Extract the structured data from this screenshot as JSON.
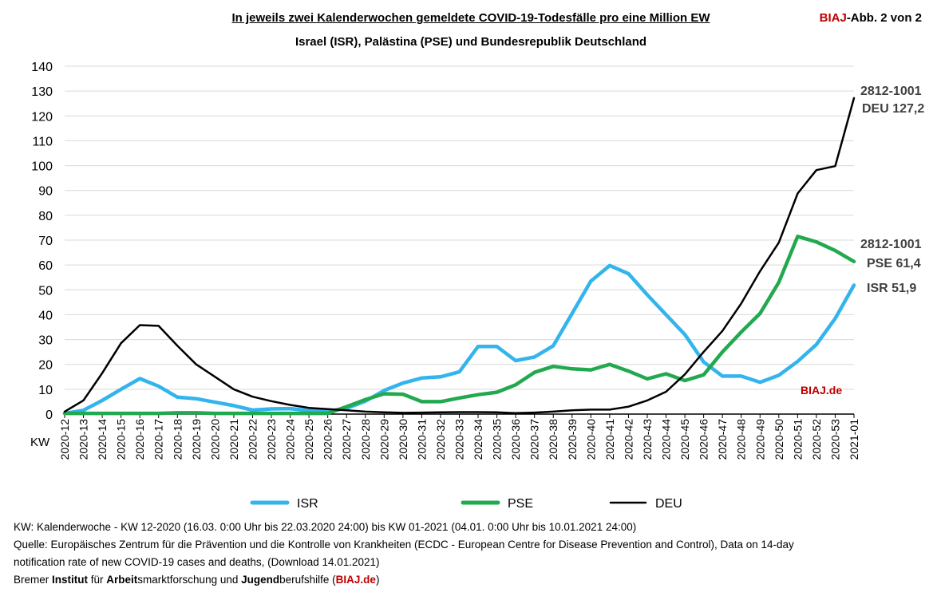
{
  "header": {
    "title": "In jeweils zwei Kalenderwochen gemeldete COVID-19-Todesfälle pro eine Million EW",
    "subtitle": "Israel (ISR), Palästina (PSE) und Bundesrepublik Deutschland",
    "badge_brand": "BIAJ",
    "badge_rest": "-Abb. 2 von 2"
  },
  "chart_data": {
    "type": "line",
    "title": "In jeweils zwei Kalenderwochen gemeldete COVID-19-Todesfälle pro eine Million EW",
    "subtitle": "Israel (ISR), Palästina (PSE) und Bundesrepublik Deutschland",
    "xlabel": "KW",
    "ylabel": "",
    "ylim": [
      0,
      140
    ],
    "yticks": [
      0,
      10,
      20,
      30,
      40,
      50,
      60,
      70,
      80,
      90,
      100,
      110,
      120,
      130,
      140
    ],
    "grid": true,
    "legend_position": "bottom",
    "categories": [
      "2020-12",
      "2020-13",
      "2020-14",
      "2020-15",
      "2020-16",
      "2020-17",
      "2020-18",
      "2020-19",
      "2020-20",
      "2020-21",
      "2020-22",
      "2020-23",
      "2020-24",
      "2020-25",
      "2020-26",
      "2020-27",
      "2020-28",
      "2020-29",
      "2020-30",
      "2020-31",
      "2020-32",
      "2020-33",
      "2020-34",
      "2020-35",
      "2020-36",
      "2020-37",
      "2020-38",
      "2020-39",
      "2020-40",
      "2020-41",
      "2020-42",
      "2020-43",
      "2020-44",
      "2020-45",
      "2020-46",
      "2020-47",
      "2020-48",
      "2020-49",
      "2020-50",
      "2020-51",
      "2020-52",
      "2020-53",
      "2021-01"
    ],
    "series": [
      {
        "name": "ISR",
        "color": "#33b4ec",
        "values": [
          0.3,
          1.5,
          5.5,
          10,
          14.3,
          11.2,
          6.8,
          6.2,
          4.8,
          3.4,
          1.6,
          2.1,
          2.2,
          1.4,
          1.2,
          2.3,
          5.2,
          9.5,
          12.5,
          14.5,
          15,
          17,
          27.2,
          27.2,
          21.5,
          23,
          27.5,
          40.5,
          53.5,
          59.8,
          56.5,
          48,
          40,
          32,
          21,
          15.3,
          15.3,
          12.8,
          15.6,
          21.2,
          28,
          38.5,
          51.9
        ]
      },
      {
        "name": "PSE",
        "color": "#22a94f",
        "values": [
          0.3,
          0.3,
          0.3,
          0.3,
          0.3,
          0.3,
          0.5,
          0.5,
          0.3,
          0.3,
          0.3,
          0.3,
          0.3,
          0.3,
          0.3,
          3,
          5.8,
          8.2,
          8,
          5,
          5,
          6.5,
          7.8,
          8.8,
          11.8,
          16.8,
          19.2,
          18.2,
          17.8,
          20,
          17.3,
          14.2,
          16.2,
          13.5,
          15.8,
          25,
          33,
          40.5,
          53,
          71.5,
          69.3,
          65.8,
          61.4
        ]
      },
      {
        "name": "DEU",
        "color": "#000000",
        "values": [
          1,
          5.5,
          16.5,
          28.5,
          35.8,
          35.5,
          27.5,
          20,
          15,
          10,
          7,
          5.2,
          3.7,
          2.5,
          2,
          1.5,
          1,
          0.7,
          0.5,
          0.6,
          0.7,
          0.8,
          0.8,
          0.7,
          0.4,
          0.6,
          1,
          1.5,
          1.8,
          1.8,
          3,
          5.5,
          9,
          16,
          25,
          33.5,
          44.5,
          57.5,
          69,
          88.8,
          98.2,
          99.8,
          127.2
        ]
      }
    ],
    "annotations": [
      {
        "text": "2812-1001",
        "series": "DEU"
      },
      {
        "text": "DEU 127,2",
        "series": "DEU"
      },
      {
        "text": "2812-1001",
        "series": "PSE"
      },
      {
        "text": "PSE 61,4",
        "series": "PSE"
      },
      {
        "text": "ISR 51,9",
        "series": "ISR"
      },
      {
        "text": "BIAJ.de",
        "series": ""
      }
    ]
  },
  "footer": {
    "line1": "KW: Kalenderwoche - KW 12-2020 (16.03. 0:00 Uhr bis 22.03.2020 24:00) bis KW 01-2021 (04.01. 0:00 Uhr bis 10.01.2021 24:00)",
    "line2": "Quelle: Europäisches Zentrum für die Prävention und die Kontrolle von Krankheiten (ECDC - European Centre for Disease Prevention and Control), Data on 14-day",
    "line3": "notification rate of new COVID-19 cases and deaths, (Download 14.01.2021)",
    "line4_a": "Bremer ",
    "line4_b": "Institut",
    "line4_c": " für ",
    "line4_d": "Arbeit",
    "line4_e": "smarktforschung und ",
    "line4_f": "Jugend",
    "line4_g": "berufshilfe (",
    "line4_h": "BIAJ.de",
    "line4_i": ")"
  }
}
